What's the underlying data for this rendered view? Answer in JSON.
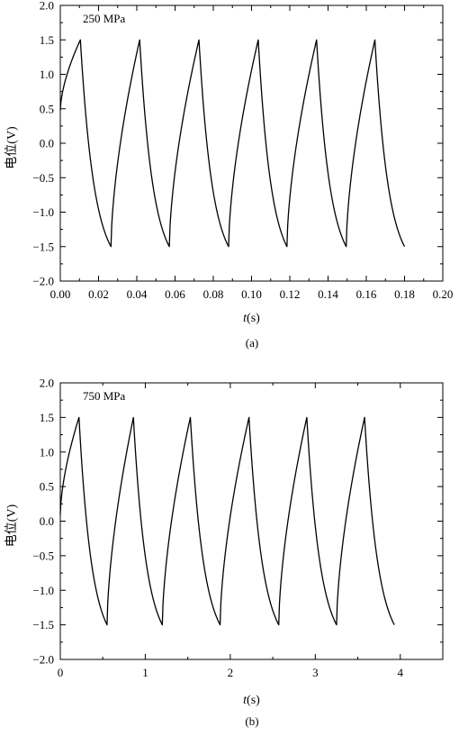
{
  "figure": {
    "panel_a_caption": "(a)",
    "panel_b_caption": "(b)"
  },
  "chart_data": [
    {
      "type": "line",
      "annotation": "250 MPa",
      "xlabel_var": "t",
      "xlabel_unit": "(s)",
      "ylabel": "电位(V)",
      "xlim": [
        0.0,
        0.2
      ],
      "ylim": [
        -2.0,
        2.0
      ],
      "xticks": [
        0.0,
        0.02,
        0.04,
        0.06,
        0.08,
        0.1,
        0.12,
        0.14,
        0.16,
        0.18,
        0.2
      ],
      "xtick_labels": [
        "0.00",
        "0.02",
        "0.04",
        "0.06",
        "0.08",
        "0.10",
        "0.12",
        "0.14",
        "0.16",
        "0.18",
        "0.20"
      ],
      "yticks": [
        -2.0,
        -1.5,
        -1.0,
        -0.5,
        0.0,
        0.5,
        1.0,
        1.5,
        2.0
      ],
      "ytick_labels": [
        "−2.0",
        "−1.5",
        "−1.0",
        "−0.5",
        "0.0",
        "0.5",
        "1.0",
        "1.5",
        "2.0"
      ],
      "grid": false,
      "series": [
        {
          "segments": [
            {
              "kind": "rise",
              "x0": 0.0,
              "y0": 0.48,
              "x1": 0.0105,
              "y1": 1.5
            },
            {
              "kind": "fall",
              "x0": 0.0105,
              "y0": 1.5,
              "x1": 0.0265,
              "y1": -1.5
            },
            {
              "kind": "rise",
              "x0": 0.0265,
              "y0": -1.5,
              "x1": 0.0415,
              "y1": 1.5
            },
            {
              "kind": "fall",
              "x0": 0.0415,
              "y0": 1.5,
              "x1": 0.057,
              "y1": -1.5
            },
            {
              "kind": "rise",
              "x0": 0.057,
              "y0": -1.5,
              "x1": 0.0725,
              "y1": 1.5
            },
            {
              "kind": "fall",
              "x0": 0.0725,
              "y0": 1.5,
              "x1": 0.088,
              "y1": -1.5
            },
            {
              "kind": "rise",
              "x0": 0.088,
              "y0": -1.5,
              "x1": 0.1035,
              "y1": 1.5
            },
            {
              "kind": "fall",
              "x0": 0.1035,
              "y0": 1.5,
              "x1": 0.1185,
              "y1": -1.5
            },
            {
              "kind": "rise",
              "x0": 0.1185,
              "y0": -1.5,
              "x1": 0.134,
              "y1": 1.5
            },
            {
              "kind": "fall",
              "x0": 0.134,
              "y0": 1.5,
              "x1": 0.1495,
              "y1": -1.5
            },
            {
              "kind": "rise",
              "x0": 0.1495,
              "y0": -1.5,
              "x1": 0.1645,
              "y1": 1.5
            },
            {
              "kind": "fall",
              "x0": 0.1645,
              "y0": 1.5,
              "x1": 0.18,
              "y1": -1.5
            }
          ]
        }
      ]
    },
    {
      "type": "line",
      "annotation": "750 MPa",
      "xlabel_var": "t",
      "xlabel_unit": "(s)",
      "ylabel": "电位(V)",
      "xlim": [
        0,
        4.5
      ],
      "ylim": [
        -2.0,
        2.0
      ],
      "xticks": [
        0,
        1,
        2,
        3,
        4
      ],
      "xtick_labels": [
        "0",
        "1",
        "2",
        "3",
        "4"
      ],
      "yticks": [
        -2.0,
        -1.5,
        -1.0,
        -0.5,
        0.0,
        0.5,
        1.0,
        1.5,
        2.0
      ],
      "ytick_labels": [
        "−2.0",
        "−1.5",
        "−1.0",
        "−0.5",
        "0.0",
        "0.5",
        "1.0",
        "1.5",
        "2.0"
      ],
      "grid": false,
      "series": [
        {
          "segments": [
            {
              "kind": "rise",
              "x0": 0.0,
              "y0": 0.1,
              "x1": 0.22,
              "y1": 1.5
            },
            {
              "kind": "fall",
              "x0": 0.22,
              "y0": 1.5,
              "x1": 0.55,
              "y1": -1.5
            },
            {
              "kind": "rise",
              "x0": 0.55,
              "y0": -1.5,
              "x1": 0.86,
              "y1": 1.5
            },
            {
              "kind": "fall",
              "x0": 0.86,
              "y0": 1.5,
              "x1": 1.2,
              "y1": -1.5
            },
            {
              "kind": "rise",
              "x0": 1.2,
              "y0": -1.5,
              "x1": 1.53,
              "y1": 1.5
            },
            {
              "kind": "fall",
              "x0": 1.53,
              "y0": 1.5,
              "x1": 1.88,
              "y1": -1.5
            },
            {
              "kind": "rise",
              "x0": 1.88,
              "y0": -1.5,
              "x1": 2.22,
              "y1": 1.5
            },
            {
              "kind": "fall",
              "x0": 2.22,
              "y0": 1.5,
              "x1": 2.57,
              "y1": -1.5
            },
            {
              "kind": "rise",
              "x0": 2.57,
              "y0": -1.5,
              "x1": 2.9,
              "y1": 1.5
            },
            {
              "kind": "fall",
              "x0": 2.9,
              "y0": 1.5,
              "x1": 3.25,
              "y1": -1.5
            },
            {
              "kind": "rise",
              "x0": 3.25,
              "y0": -1.5,
              "x1": 3.58,
              "y1": 1.5
            },
            {
              "kind": "fall",
              "x0": 3.58,
              "y0": 1.5,
              "x1": 3.93,
              "y1": -1.5
            }
          ]
        }
      ]
    }
  ]
}
